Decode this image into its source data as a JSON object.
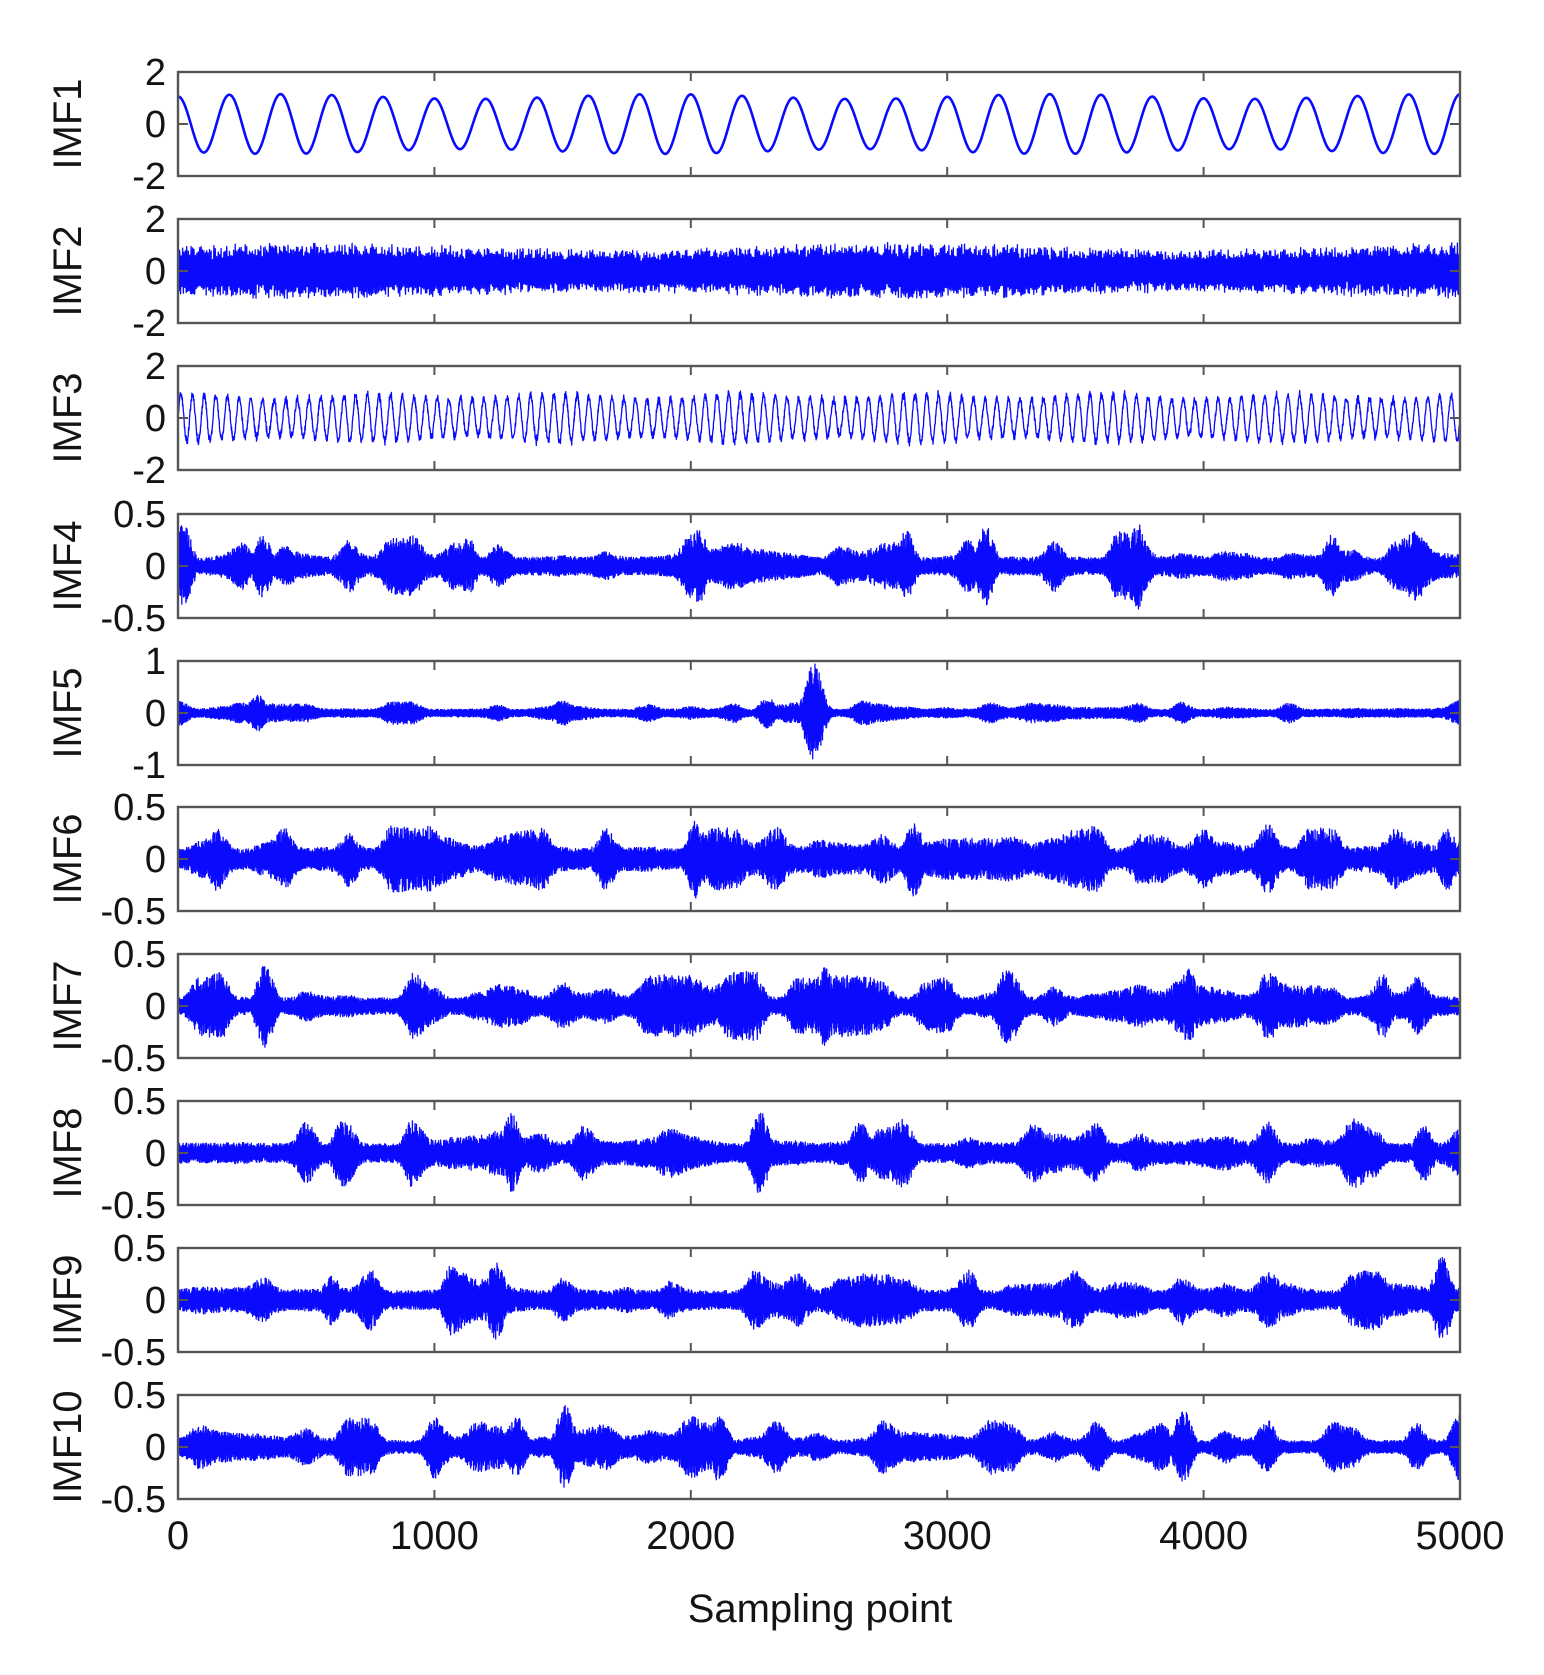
{
  "chart_data": {
    "type": "line",
    "xlabel": "Sampling point",
    "x_range": [
      0,
      5000
    ],
    "x_ticks": [
      "0",
      "1000",
      "2000",
      "3000",
      "4000",
      "5000"
    ],
    "grid": false,
    "series_color": "#0a0aff",
    "panels": [
      {
        "name": "IMF1",
        "ylim": [
          -2,
          2
        ],
        "yticks": [
          "2",
          "0",
          "-2"
        ],
        "signal": {
          "kind": "sine",
          "cycles": 25,
          "amplitude": 1.15,
          "phase": 0.25
        }
      },
      {
        "name": "IMF2",
        "ylim": [
          -2,
          2
        ],
        "yticks": [
          "2",
          "0",
          "-2"
        ],
        "signal": {
          "kind": "dense",
          "amplitude": 1.0,
          "envelope": 0.12
        }
      },
      {
        "name": "IMF3",
        "ylim": [
          -2,
          2
        ],
        "yticks": [
          "2",
          "0",
          "-2"
        ],
        "signal": {
          "kind": "dense-cycles",
          "cycles": 110,
          "amplitude": 1.0
        }
      },
      {
        "name": "IMF4",
        "ylim": [
          -0.5,
          0.5
        ],
        "yticks": [
          "0.5",
          "0",
          "-0.5"
        ],
        "signal": {
          "kind": "bursts",
          "base": 0.08,
          "peak": 0.36,
          "events": [
            [
              20,
              0.4
            ],
            [
              330,
              0.3
            ],
            [
              1130,
              0.28
            ],
            [
              2030,
              0.36
            ],
            [
              2840,
              0.34
            ],
            [
              3150,
              0.38
            ],
            [
              3740,
              0.42
            ],
            [
              4500,
              0.3
            ]
          ]
        }
      },
      {
        "name": "IMF5",
        "ylim": [
          -1,
          1
        ],
        "yticks": [
          "1",
          "0",
          "-1"
        ],
        "signal": {
          "kind": "bursts",
          "base": 0.07,
          "peak": 0.25,
          "events": [
            [
              310,
              0.35
            ],
            [
              2480,
              0.95
            ],
            [
              2300,
              0.3
            ],
            [
              1500,
              0.25
            ]
          ]
        }
      },
      {
        "name": "IMF6",
        "ylim": [
          -0.5,
          0.5
        ],
        "yticks": [
          "0.5",
          "0",
          "-0.5"
        ],
        "signal": {
          "kind": "bursts",
          "base": 0.1,
          "peak": 0.34,
          "events": [
            [
              150,
              0.32
            ],
            [
              980,
              0.32
            ],
            [
              2020,
              0.38
            ],
            [
              2870,
              0.36
            ],
            [
              3520,
              0.3
            ],
            [
              4950,
              0.3
            ]
          ]
        }
      },
      {
        "name": "IMF7",
        "ylim": [
          -0.5,
          0.5
        ],
        "yticks": [
          "0.5",
          "0",
          "-0.5"
        ],
        "signal": {
          "kind": "bursts",
          "base": 0.08,
          "peak": 0.34,
          "events": [
            [
              340,
              0.4
            ],
            [
              2520,
              0.38
            ],
            [
              3230,
              0.36
            ],
            [
              3940,
              0.36
            ],
            [
              4700,
              0.32
            ]
          ]
        }
      },
      {
        "name": "IMF8",
        "ylim": [
          -0.5,
          0.5
        ],
        "yticks": [
          "0.5",
          "0",
          "-0.5"
        ],
        "signal": {
          "kind": "bursts",
          "base": 0.09,
          "peak": 0.34,
          "events": [
            [
              640,
              0.34
            ],
            [
              1300,
              0.38
            ],
            [
              2270,
              0.4
            ],
            [
              2660,
              0.3
            ],
            [
              4860,
              0.28
            ]
          ]
        }
      },
      {
        "name": "IMF9",
        "ylim": [
          -0.5,
          0.5
        ],
        "yticks": [
          "0.5",
          "0",
          "-0.5"
        ],
        "signal": {
          "kind": "bursts",
          "base": 0.09,
          "peak": 0.32,
          "events": [
            [
              600,
              0.24
            ],
            [
              1070,
              0.36
            ],
            [
              1240,
              0.38
            ],
            [
              4930,
              0.42
            ]
          ]
        }
      },
      {
        "name": "IMF10",
        "ylim": [
          -0.5,
          0.5
        ],
        "yticks": [
          "0.5",
          "0",
          "-0.5"
        ],
        "signal": {
          "kind": "bursts",
          "base": 0.06,
          "peak": 0.34,
          "events": [
            [
              1510,
              0.4
            ],
            [
              2110,
              0.34
            ],
            [
              3920,
              0.36
            ],
            [
              1320,
              0.3
            ]
          ]
        }
      }
    ]
  }
}
